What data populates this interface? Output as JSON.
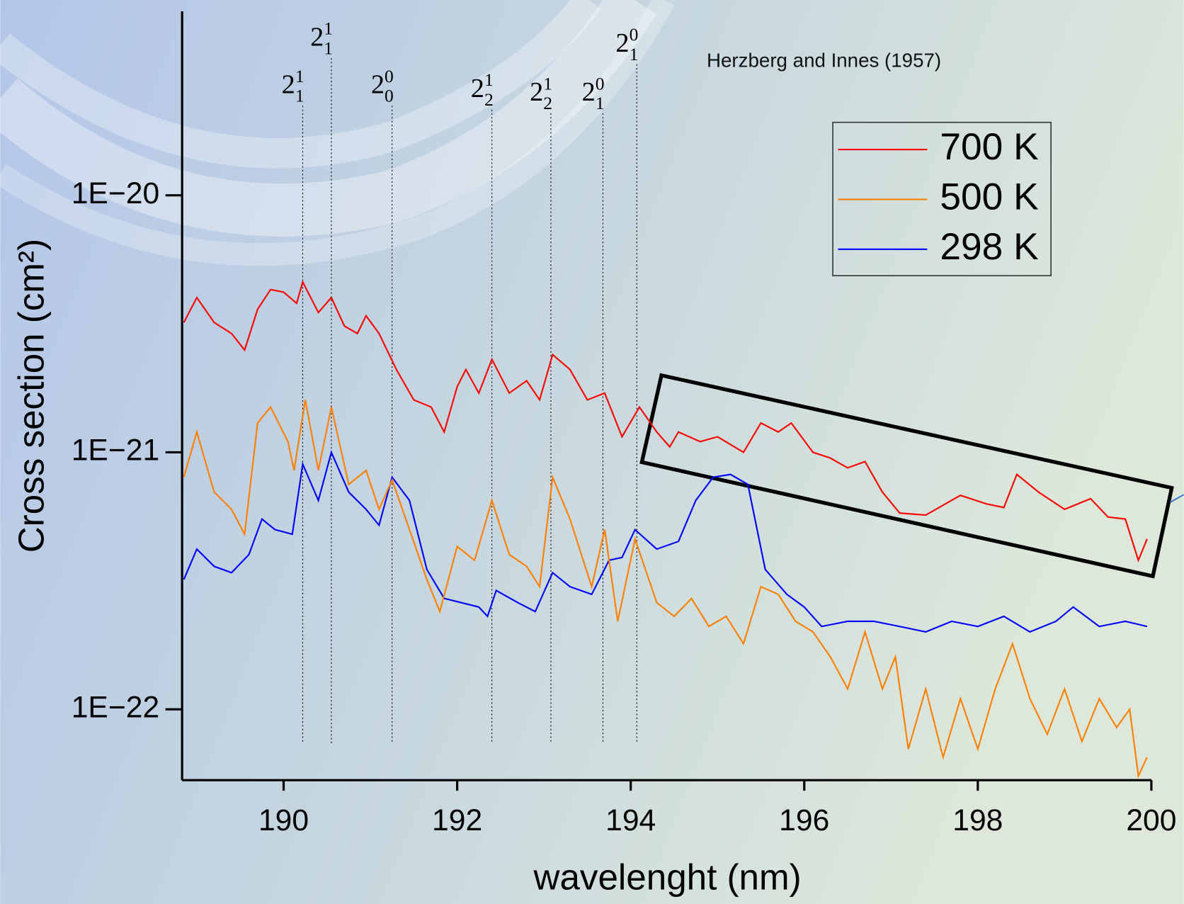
{
  "chart_data": {
    "type": "line",
    "yscale": "log",
    "xlabel": "wavelenght (nm)",
    "ylabel": "Cross section (cm²)",
    "note": "Herzberg and Innes (1957)",
    "xlim": [
      188.83,
      200
    ],
    "xticks": [
      190,
      192,
      194,
      196,
      198,
      200
    ],
    "ylim": [
      5.3e-23,
      5.2e-20
    ],
    "yticks": [
      {
        "value": 1e-22,
        "label": "1E−22"
      },
      {
        "value": 1e-21,
        "label": "1E−21"
      },
      {
        "value": 1e-20,
        "label": "1E−20"
      }
    ],
    "legend": "top-right",
    "annotations": [
      {
        "x": 190.22,
        "base": "2",
        "sup": "1",
        "sub": "1"
      },
      {
        "x": 190.55,
        "base": "2",
        "sup": "1",
        "sub": "1"
      },
      {
        "x": 191.25,
        "base": "2",
        "sup": "0",
        "sub": "0"
      },
      {
        "x": 192.4,
        "base": "2",
        "sup": "1",
        "sub": "2"
      },
      {
        "x": 193.08,
        "base": "2",
        "sup": "1",
        "sub": "2"
      },
      {
        "x": 193.68,
        "base": "2",
        "sup": "0",
        "sub": "1"
      },
      {
        "x": 194.07,
        "base": "2",
        "sup": "0",
        "sub": "1"
      }
    ],
    "series": [
      {
        "name": "700 K",
        "color": "#ff0000",
        "x": [
          188.85,
          189.0,
          189.2,
          189.4,
          189.55,
          189.7,
          189.85,
          190.0,
          190.15,
          190.22,
          190.4,
          190.55,
          190.7,
          190.85,
          190.95,
          191.1,
          191.3,
          191.5,
          191.7,
          191.85,
          192.0,
          192.1,
          192.25,
          192.4,
          192.6,
          192.8,
          192.95,
          193.1,
          193.3,
          193.5,
          193.7,
          193.9,
          194.1,
          194.3,
          194.45,
          194.55,
          194.8,
          195.0,
          195.3,
          195.5,
          195.7,
          195.85,
          196.1,
          196.3,
          196.5,
          196.7,
          196.9,
          197.1,
          197.4,
          197.8,
          198.1,
          198.3,
          198.45,
          198.7,
          199.0,
          199.3,
          199.5,
          199.7,
          199.85,
          199.95
        ],
        "values": [
          3.2e-21,
          4e-21,
          3.2e-21,
          2.9e-21,
          2.5e-21,
          3.6e-21,
          4.3e-21,
          4.2e-21,
          3.8e-21,
          4.6e-21,
          3.5e-21,
          4e-21,
          3.1e-21,
          2.9e-21,
          3.4e-21,
          2.9e-21,
          2.1e-21,
          1.6e-21,
          1.5e-21,
          1.2e-21,
          1.8e-21,
          2.1e-21,
          1.7e-21,
          2.3e-21,
          1.7e-21,
          1.9e-21,
          1.6e-21,
          2.4e-21,
          2.1e-21,
          1.6e-21,
          1.7e-21,
          1.15e-21,
          1.5e-21,
          1.2e-21,
          1.05e-21,
          1.2e-21,
          1.1e-21,
          1.15e-21,
          1e-21,
          1.3e-21,
          1.2e-21,
          1.3e-21,
          1e-21,
          9.5e-22,
          8.7e-22,
          9.2e-22,
          7e-22,
          5.8e-22,
          5.7e-22,
          6.8e-22,
          6.3e-22,
          6.1e-22,
          8.2e-22,
          7e-22,
          6e-22,
          6.6e-22,
          5.6e-22,
          5.5e-22,
          3.8e-22,
          4.6e-22
        ]
      },
      {
        "name": "500 K",
        "color": "#ff8000",
        "x": [
          188.85,
          189.0,
          189.2,
          189.4,
          189.55,
          189.7,
          189.85,
          190.05,
          190.12,
          190.25,
          190.4,
          190.55,
          190.75,
          190.95,
          191.1,
          191.25,
          191.45,
          191.65,
          191.8,
          192.0,
          192.2,
          192.4,
          192.6,
          192.8,
          192.95,
          193.1,
          193.3,
          193.55,
          193.7,
          193.85,
          194.05,
          194.3,
          194.5,
          194.7,
          194.9,
          195.1,
          195.3,
          195.5,
          195.7,
          195.9,
          196.1,
          196.3,
          196.5,
          196.7,
          196.9,
          197.05,
          197.2,
          197.4,
          197.6,
          197.8,
          198.0,
          198.2,
          198.4,
          198.6,
          198.8,
          199.0,
          199.2,
          199.4,
          199.6,
          199.75,
          199.85,
          199.95
        ],
        "values": [
          8e-22,
          1.2e-21,
          7e-22,
          6e-22,
          4.8e-22,
          1.3e-21,
          1.5e-21,
          1.1e-21,
          8.5e-22,
          1.6e-21,
          8.5e-22,
          1.5e-21,
          7.5e-22,
          8.5e-22,
          6e-22,
          7.8e-22,
          5e-22,
          3.2e-22,
          2.4e-22,
          4.3e-22,
          3.8e-22,
          6.5e-22,
          4e-22,
          3.6e-22,
          3e-22,
          8e-22,
          5.5e-22,
          3e-22,
          5e-22,
          2.2e-22,
          4.6e-22,
          2.6e-22,
          2.3e-22,
          2.7e-22,
          2.1e-22,
          2.3e-22,
          1.8e-22,
          3e-22,
          2.8e-22,
          2.2e-22,
          2e-22,
          1.6e-22,
          1.2e-22,
          2e-22,
          1.2e-22,
          1.6e-22,
          7e-23,
          1.2e-22,
          6.5e-23,
          1.1e-22,
          7e-23,
          1.2e-22,
          1.8e-22,
          1.1e-22,
          8e-23,
          1.2e-22,
          7.5e-23,
          1.1e-22,
          8.5e-23,
          1e-22,
          5.5e-23,
          6.5e-23
        ]
      },
      {
        "name": "298 K",
        "color": "#0000ff",
        "x": [
          188.85,
          189.0,
          189.2,
          189.4,
          189.6,
          189.75,
          189.9,
          190.1,
          190.22,
          190.4,
          190.55,
          190.75,
          190.95,
          191.1,
          191.25,
          191.45,
          191.65,
          191.85,
          192.05,
          192.25,
          192.35,
          192.45,
          192.7,
          192.9,
          193.1,
          193.3,
          193.55,
          193.75,
          193.9,
          194.05,
          194.3,
          194.55,
          194.75,
          194.95,
          195.15,
          195.35,
          195.55,
          195.8,
          196.0,
          196.2,
          196.5,
          196.8,
          197.1,
          197.4,
          197.7,
          198.0,
          198.3,
          198.6,
          198.9,
          199.1,
          199.4,
          199.7,
          199.95
        ],
        "values": [
          3.2e-22,
          4.2e-22,
          3.6e-22,
          3.4e-22,
          4e-22,
          5.5e-22,
          5e-22,
          4.8e-22,
          9e-22,
          6.5e-22,
          1e-21,
          7e-22,
          6e-22,
          5.2e-22,
          8e-22,
          6.5e-22,
          3.5e-22,
          2.7e-22,
          2.6e-22,
          2.5e-22,
          2.3e-22,
          2.9e-22,
          2.6e-22,
          2.4e-22,
          3.4e-22,
          3e-22,
          2.8e-22,
          3.8e-22,
          3.9e-22,
          5e-22,
          4.2e-22,
          4.5e-22,
          6.5e-22,
          8e-22,
          8.2e-22,
          7.5e-22,
          3.5e-22,
          2.8e-22,
          2.5e-22,
          2.1e-22,
          2.2e-22,
          2.2e-22,
          2.1e-22,
          2e-22,
          2.2e-22,
          2.1e-22,
          2.3e-22,
          2e-22,
          2.2e-22,
          2.5e-22,
          2.1e-22,
          2.2e-22,
          2.1e-22
        ]
      }
    ]
  }
}
